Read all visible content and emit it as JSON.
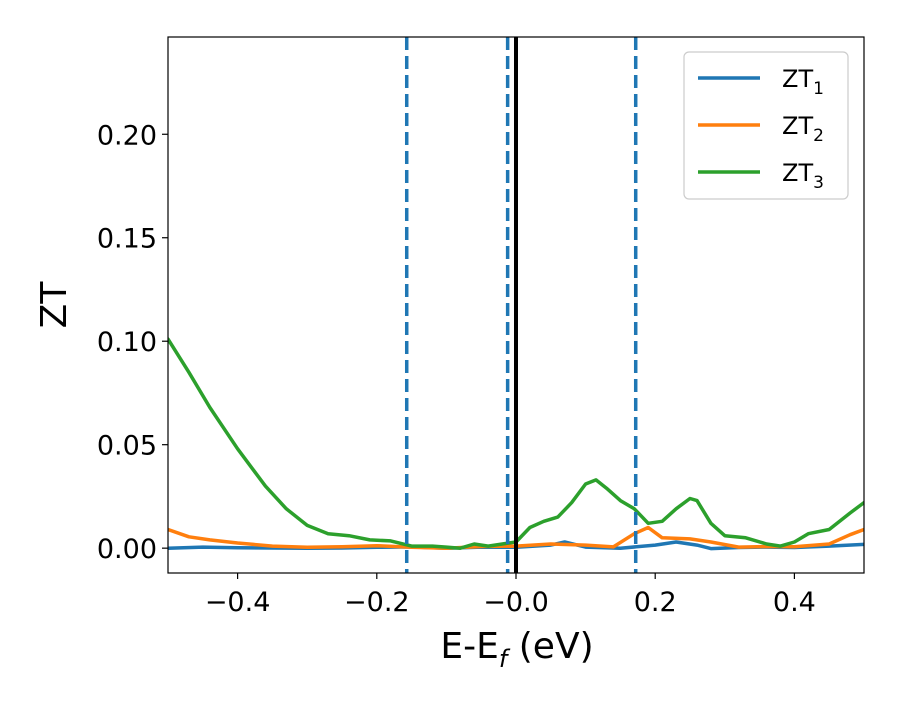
{
  "chart_data": {
    "type": "line",
    "xlabel": "E-E_f (eV)",
    "xlabel_parts": {
      "main": "E-E",
      "sub": "f",
      "tail": " (eV)"
    },
    "ylabel": "ZT",
    "xlim": [
      -0.5,
      0.5
    ],
    "ylim": [
      -0.012,
      0.247
    ],
    "x_ticks": [
      -0.4,
      -0.2,
      0.0,
      0.2,
      0.4
    ],
    "x_tick_labels": [
      "−0.4",
      "−0.2",
      "−0.0",
      "0.2",
      "0.4"
    ],
    "y_ticks": [
      0.0,
      0.05,
      0.1,
      0.15,
      0.2
    ],
    "y_tick_labels": [
      "0.00",
      "0.05",
      "0.10",
      "0.15",
      "0.20"
    ],
    "grid": false,
    "legend_position": "top-right",
    "vertical_lines": [
      {
        "x": -0.157,
        "style": "dashed",
        "color": "#1f77b4"
      },
      {
        "x": -0.012,
        "style": "dashed",
        "color": "#1f77b4"
      },
      {
        "x": 0.0,
        "style": "solid",
        "color": "#000000"
      },
      {
        "x": 0.172,
        "style": "dashed",
        "color": "#1f77b4"
      }
    ],
    "series": [
      {
        "name": "ZT_1",
        "label_main": "ZT",
        "label_sub": "1",
        "color": "#1f77b4",
        "points": [
          [
            -0.5,
            0.0
          ],
          [
            -0.45,
            0.0005
          ],
          [
            -0.4,
            0.0002
          ],
          [
            -0.35,
            0.0001
          ],
          [
            -0.3,
            0.0
          ],
          [
            -0.25,
            0.0001
          ],
          [
            -0.2,
            0.0004
          ],
          [
            -0.15,
            0.0006
          ],
          [
            -0.1,
            0.0
          ],
          [
            -0.05,
            0.0005
          ],
          [
            0.0,
            0.0004
          ],
          [
            0.05,
            0.0015
          ],
          [
            0.07,
            0.003
          ],
          [
            0.1,
            0.0005
          ],
          [
            0.15,
            0.0
          ],
          [
            0.2,
            0.0015
          ],
          [
            0.23,
            0.003
          ],
          [
            0.26,
            0.0015
          ],
          [
            0.28,
            -0.0002
          ],
          [
            0.32,
            0.0003
          ],
          [
            0.36,
            0.0005
          ],
          [
            0.4,
            0.0003
          ],
          [
            0.45,
            0.001
          ],
          [
            0.5,
            0.0018
          ]
        ]
      },
      {
        "name": "ZT_2",
        "label_main": "ZT",
        "label_sub": "2",
        "color": "#ff7f0e",
        "points": [
          [
            -0.5,
            0.009
          ],
          [
            -0.47,
            0.0055
          ],
          [
            -0.44,
            0.004
          ],
          [
            -0.4,
            0.0025
          ],
          [
            -0.35,
            0.001
          ],
          [
            -0.3,
            0.0004
          ],
          [
            -0.25,
            0.0007
          ],
          [
            -0.2,
            0.0012
          ],
          [
            -0.15,
            0.0004
          ],
          [
            -0.1,
            0.0
          ],
          [
            -0.05,
            0.0008
          ],
          [
            0.0,
            0.001
          ],
          [
            0.05,
            0.002
          ],
          [
            0.1,
            0.0015
          ],
          [
            0.14,
            0.0006
          ],
          [
            0.17,
            0.007
          ],
          [
            0.19,
            0.01
          ],
          [
            0.21,
            0.005
          ],
          [
            0.25,
            0.0045
          ],
          [
            0.28,
            0.003
          ],
          [
            0.32,
            0.0005
          ],
          [
            0.36,
            0.0008
          ],
          [
            0.4,
            0.0007
          ],
          [
            0.45,
            0.002
          ],
          [
            0.48,
            0.0065
          ],
          [
            0.5,
            0.009
          ]
        ]
      },
      {
        "name": "ZT_3",
        "label_main": "ZT",
        "label_sub": "3",
        "color": "#2ca02c",
        "points": [
          [
            -0.5,
            0.101
          ],
          [
            -0.47,
            0.085
          ],
          [
            -0.44,
            0.068
          ],
          [
            -0.4,
            0.048
          ],
          [
            -0.36,
            0.03
          ],
          [
            -0.33,
            0.019
          ],
          [
            -0.3,
            0.011
          ],
          [
            -0.27,
            0.007
          ],
          [
            -0.24,
            0.006
          ],
          [
            -0.21,
            0.004
          ],
          [
            -0.18,
            0.0035
          ],
          [
            -0.15,
            0.001
          ],
          [
            -0.12,
            0.001
          ],
          [
            -0.1,
            0.0005
          ],
          [
            -0.08,
            0.0
          ],
          [
            -0.06,
            0.002
          ],
          [
            -0.04,
            0.001
          ],
          [
            -0.01,
            0.0025
          ],
          [
            0.0,
            0.003
          ],
          [
            0.02,
            0.01
          ],
          [
            0.04,
            0.013
          ],
          [
            0.06,
            0.015
          ],
          [
            0.08,
            0.022
          ],
          [
            0.1,
            0.031
          ],
          [
            0.115,
            0.033
          ],
          [
            0.13,
            0.029
          ],
          [
            0.15,
            0.023
          ],
          [
            0.17,
            0.019
          ],
          [
            0.19,
            0.012
          ],
          [
            0.21,
            0.013
          ],
          [
            0.23,
            0.019
          ],
          [
            0.25,
            0.024
          ],
          [
            0.26,
            0.023
          ],
          [
            0.28,
            0.012
          ],
          [
            0.3,
            0.006
          ],
          [
            0.33,
            0.005
          ],
          [
            0.36,
            0.002
          ],
          [
            0.38,
            0.001
          ],
          [
            0.4,
            0.003
          ],
          [
            0.42,
            0.007
          ],
          [
            0.45,
            0.009
          ],
          [
            0.48,
            0.017
          ],
          [
            0.5,
            0.022
          ]
        ]
      }
    ]
  }
}
